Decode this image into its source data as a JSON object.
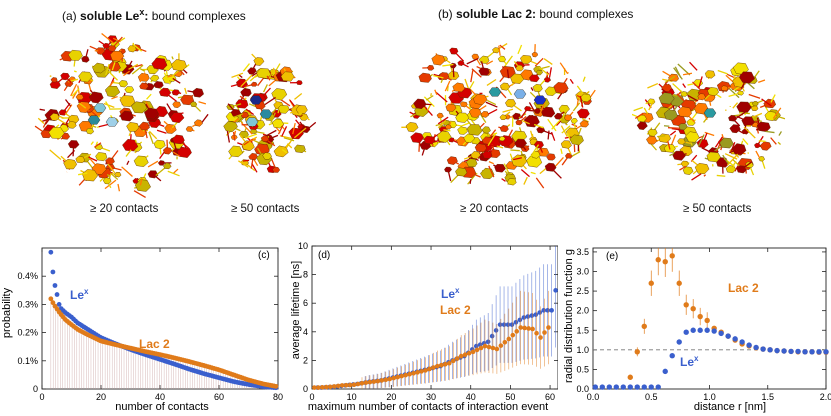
{
  "header_a": {
    "prefix": "(a) ",
    "bold": "soluble Le",
    "sup": "x",
    "bold_end": ":",
    "rest": " bound complexes"
  },
  "header_b": {
    "prefix": "(b) ",
    "bold": "soluble Lac 2:",
    "rest": " bound complexes"
  },
  "contact_labels": [
    "≥ 20 contacts",
    "≥ 50 contacts",
    "≥ 20 contacts",
    "≥ 50 contacts"
  ],
  "colors": {
    "lex": "#3a5fcd",
    "lac2": "#e07b1a",
    "stem": "#c49a9a"
  },
  "chart_data": [
    {
      "type": "scatter",
      "panel": "(c)",
      "xlabel": "number of contacts",
      "ylabel": "probability",
      "xlim": [
        0,
        80
      ],
      "ylim": [
        0,
        0.5
      ],
      "xticks": [
        0,
        20,
        40,
        60,
        80
      ],
      "yticks": [
        0,
        0.1,
        0.2,
        0.3,
        0.4
      ],
      "ytick_labels": [
        "0",
        "0.1%",
        "0.2%",
        "0.3%",
        "0.4%"
      ],
      "series": [
        {
          "name": "Le",
          "name_sup": "x",
          "x": [
            3,
            4,
            5,
            6,
            8,
            10,
            12,
            15,
            18,
            20,
            25,
            30,
            35,
            40,
            45,
            50,
            55,
            60,
            65,
            70,
            75,
            80
          ],
          "values": [
            0.485,
            0.385,
            0.34,
            0.29,
            0.27,
            0.255,
            0.235,
            0.215,
            0.195,
            0.182,
            0.16,
            0.14,
            0.122,
            0.105,
            0.088,
            0.07,
            0.054,
            0.04,
            0.026,
            0.016,
            0.008,
            0.004
          ]
        },
        {
          "name": "Lac 2",
          "x": [
            3,
            4,
            5,
            6,
            8,
            10,
            12,
            15,
            18,
            20,
            25,
            30,
            35,
            40,
            45,
            50,
            55,
            60,
            65,
            70,
            75,
            80
          ],
          "values": [
            0.32,
            0.3,
            0.285,
            0.27,
            0.245,
            0.228,
            0.212,
            0.195,
            0.18,
            0.17,
            0.157,
            0.145,
            0.133,
            0.122,
            0.11,
            0.097,
            0.083,
            0.068,
            0.05,
            0.032,
            0.018,
            0.008
          ]
        }
      ]
    },
    {
      "type": "scatter",
      "panel": "(d)",
      "xlabel": "maximum number of contacts of interaction event",
      "ylabel": "average lifetime [ns]",
      "xlim": [
        0,
        62
      ],
      "ylim": [
        0,
        10
      ],
      "xticks": [
        0,
        10,
        20,
        30,
        40,
        50,
        60
      ],
      "yticks": [
        0,
        2,
        4,
        6,
        8,
        10
      ],
      "series": [
        {
          "name": "Le",
          "name_sup": "x",
          "x": [
            2,
            5,
            8,
            11,
            14,
            17,
            20,
            23,
            26,
            29,
            32,
            35,
            38,
            41,
            44,
            47,
            50,
            53,
            56,
            58,
            60,
            61
          ],
          "values": [
            0.1,
            0.15,
            0.25,
            0.35,
            0.5,
            0.6,
            0.8,
            1.0,
            1.2,
            1.4,
            1.6,
            2.0,
            2.3,
            3.0,
            3.3,
            4.5,
            4.5,
            5.0,
            5.2,
            5.5,
            5.5,
            6.9
          ]
        },
        {
          "name": "Lac 2",
          "x": [
            2,
            5,
            8,
            11,
            14,
            17,
            20,
            23,
            26,
            29,
            32,
            35,
            38,
            41,
            44,
            47,
            50,
            53,
            56,
            58,
            60
          ],
          "values": [
            0.1,
            0.15,
            0.25,
            0.3,
            0.45,
            0.55,
            0.7,
            0.9,
            1.1,
            1.3,
            1.6,
            1.8,
            2.3,
            2.6,
            3.0,
            2.8,
            3.5,
            4.3,
            4.2,
            3.6,
            4.3
          ]
        }
      ]
    },
    {
      "type": "scatter",
      "panel": "(e)",
      "xlabel": "distance r  [nm]",
      "ylabel": "radial distribution function g",
      "xlim": [
        0,
        2.0
      ],
      "ylim": [
        0,
        3.6
      ],
      "xticks": [
        0,
        0.5,
        1.0,
        1.5,
        2.0
      ],
      "yticks": [
        0,
        0.5,
        1.0,
        1.5,
        2.0,
        2.5,
        3.0,
        3.5
      ],
      "reference_line": 1.0,
      "series": [
        {
          "name": "Le",
          "name_sup": "x",
          "x": [
            0.02,
            0.08,
            0.14,
            0.2,
            0.26,
            0.32,
            0.38,
            0.44,
            0.5,
            0.56,
            0.62,
            0.68,
            0.74,
            0.8,
            0.86,
            0.92,
            0.98,
            1.04,
            1.1,
            1.16,
            1.22,
            1.28,
            1.34,
            1.4,
            1.46,
            1.52,
            1.58,
            1.64,
            1.7,
            1.76,
            1.82,
            1.88,
            1.94,
            2.0
          ],
          "values": [
            0.05,
            0.05,
            0.05,
            0.05,
            0.05,
            0.05,
            0.05,
            0.05,
            0.05,
            0.05,
            0.45,
            0.85,
            1.2,
            1.45,
            1.5,
            1.5,
            1.5,
            1.48,
            1.42,
            1.35,
            1.28,
            1.2,
            1.12,
            1.06,
            1.02,
            1.0,
            0.98,
            0.97,
            0.96,
            0.96,
            0.95,
            0.95,
            0.95,
            0.95
          ]
        },
        {
          "name": "Lac 2",
          "x": [
            0.32,
            0.38,
            0.44,
            0.5,
            0.56,
            0.62,
            0.68,
            0.74,
            0.8,
            0.86,
            0.92,
            0.98,
            1.04,
            1.1,
            1.16,
            1.22,
            1.28,
            1.34,
            1.4,
            1.46,
            1.52,
            1.58,
            1.64,
            1.7,
            1.76,
            1.82,
            1.88,
            1.94,
            2.0
          ],
          "values": [
            0.3,
            0.95,
            1.6,
            2.7,
            3.3,
            3.25,
            3.4,
            2.7,
            2.15,
            2.05,
            1.85,
            1.75,
            1.55,
            1.45,
            1.35,
            1.25,
            1.15,
            1.1,
            1.05,
            1.02,
            1.0,
            0.98,
            0.97,
            0.96,
            0.95,
            0.95,
            0.95,
            0.94,
            0.94
          ]
        }
      ]
    }
  ]
}
